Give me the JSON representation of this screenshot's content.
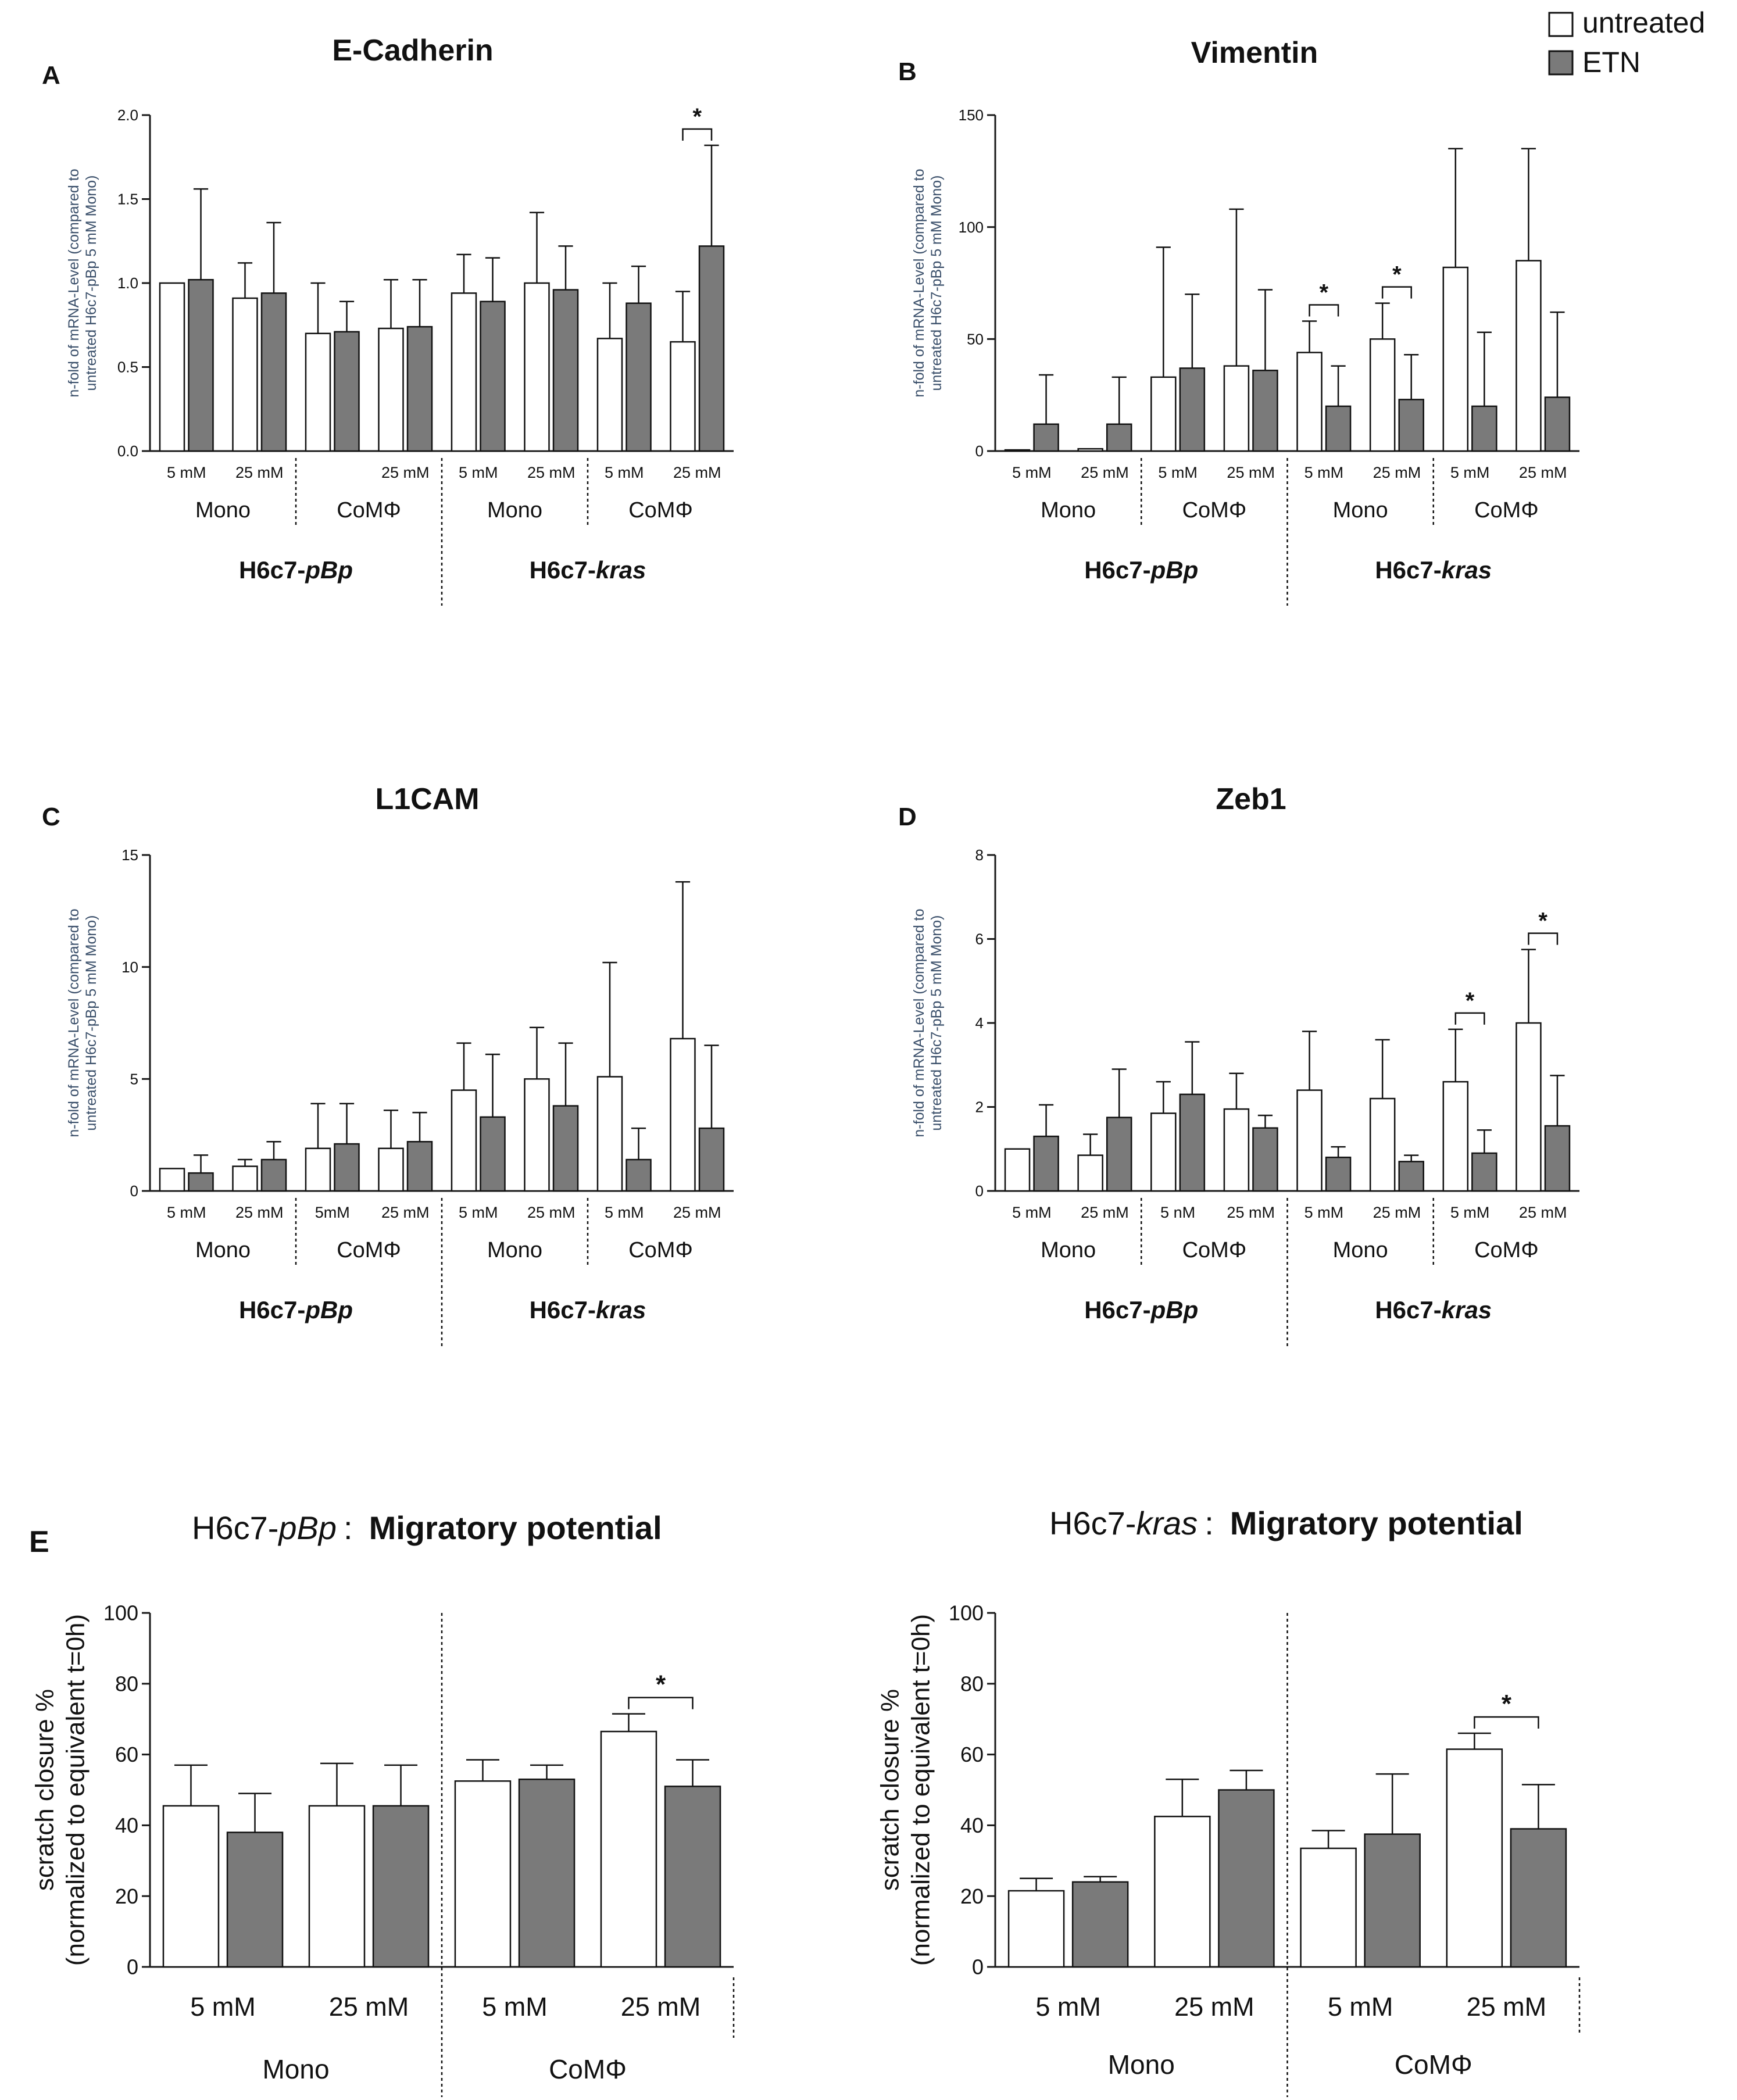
{
  "colors": {
    "untreated": "#ffffff",
    "etn": "#7a7a7a",
    "axis": "#1a1a1a",
    "divider": "#111111",
    "ylabel": "#3a4f6a"
  },
  "legend": {
    "untreated": "untreated",
    "etn": "ETN"
  },
  "chart_data": [
    {
      "id": "A",
      "panel_letter": "A",
      "type": "bar",
      "title": "E-Cadherin",
      "ylabel": [
        "n-fold of mRNA-Level (compared to",
        "untreated H6c7-pBp 5 mM Mono)"
      ],
      "ylim": [
        0,
        2.0
      ],
      "yticks": [
        "0.0",
        "0.5",
        "1.0",
        "1.5",
        "2.0"
      ],
      "categories": [
        "5 mM",
        "25 mM",
        "",
        "25 mM",
        "5 mM",
        "25 mM",
        "5 mM",
        "25 mM"
      ],
      "series": [
        {
          "name": "untreated",
          "values": [
            1.0,
            0.91,
            0.7,
            0.73,
            0.94,
            1.0,
            0.67,
            0.65
          ],
          "errors": [
            0,
            0.21,
            0.3,
            0.29,
            0.23,
            0.42,
            0.33,
            0.3
          ]
        },
        {
          "name": "ETN",
          "values": [
            1.02,
            0.94,
            0.71,
            0.74,
            0.89,
            0.96,
            0.88,
            1.22
          ],
          "errors": [
            0.54,
            0.42,
            0.18,
            0.28,
            0.26,
            0.26,
            0.22,
            0.6
          ]
        }
      ],
      "groups": [
        "Mono",
        "CoMΦ",
        "Mono",
        "CoMΦ"
      ],
      "cell_lines": [
        {
          "prefix": "H6c7-",
          "suffix": "pBp"
        },
        {
          "prefix": "H6c7-",
          "suffix": "kras"
        }
      ],
      "significance": [
        {
          "category": 7,
          "label": "*"
        }
      ]
    },
    {
      "id": "B",
      "panel_letter": "B",
      "type": "bar",
      "title": "Vimentin",
      "ylabel": [
        "n-fold of mRNA-Level (compared to",
        "untreated H6c7-pBp 5 mM Mono)"
      ],
      "ylim": [
        0,
        150
      ],
      "yticks": [
        "0",
        "50",
        "100",
        "150"
      ],
      "categories": [
        "5 mM",
        "25 mM",
        "5 mM",
        "25 mM",
        "5 mM",
        "25 mM",
        "5 mM",
        "25 mM"
      ],
      "series": [
        {
          "name": "untreated",
          "values": [
            0.5,
            1.0,
            33,
            38,
            44,
            50,
            82,
            85
          ],
          "errors": [
            0,
            0,
            58,
            70,
            14,
            16,
            53,
            50
          ]
        },
        {
          "name": "ETN",
          "values": [
            12,
            12,
            37,
            36,
            20,
            23,
            20,
            24
          ],
          "errors": [
            22,
            21,
            33,
            36,
            18,
            20,
            33,
            38
          ]
        }
      ],
      "groups": [
        "Mono",
        "CoMΦ",
        "Mono",
        "CoMΦ"
      ],
      "cell_lines": [
        {
          "prefix": "H6c7-",
          "suffix": "pBp"
        },
        {
          "prefix": "H6c7-",
          "suffix": "kras"
        }
      ],
      "significance": [
        {
          "category": 4,
          "label": "*"
        },
        {
          "category": 5,
          "label": "*"
        }
      ]
    },
    {
      "id": "C",
      "panel_letter": "C",
      "type": "bar",
      "title": "L1CAM",
      "ylabel": [
        "n-fold of mRNA-Level (compared to",
        "untreated H6c7-pBp 5 mM Mono)"
      ],
      "ylim": [
        0,
        15
      ],
      "yticks": [
        "0",
        "5",
        "10",
        "15"
      ],
      "categories": [
        "5 mM",
        "25 mM",
        "5mM",
        "25 mM",
        "5 mM",
        "25 mM",
        "5 mM",
        "25 mM"
      ],
      "series": [
        {
          "name": "untreated",
          "values": [
            1.0,
            1.1,
            1.9,
            1.9,
            4.5,
            5.0,
            5.1,
            6.8
          ],
          "errors": [
            0,
            0.3,
            2.0,
            1.7,
            2.1,
            2.3,
            5.1,
            7.0
          ]
        },
        {
          "name": "ETN",
          "values": [
            0.8,
            1.4,
            2.1,
            2.2,
            3.3,
            3.8,
            1.4,
            2.8
          ],
          "errors": [
            0.8,
            0.8,
            1.8,
            1.3,
            2.8,
            2.8,
            1.4,
            3.7
          ]
        }
      ],
      "groups": [
        "Mono",
        "CoMΦ",
        "Mono",
        "CoMΦ"
      ],
      "cell_lines": [
        {
          "prefix": "H6c7-",
          "suffix": "pBp"
        },
        {
          "prefix": "H6c7-",
          "suffix": "kras"
        }
      ],
      "significance": []
    },
    {
      "id": "D",
      "panel_letter": "D",
      "type": "bar",
      "title": "Zeb1",
      "ylabel": [
        "n-fold of mRNA-Level (compared to",
        "untreated H6c7-pBp 5 mM Mono)"
      ],
      "ylim": [
        0,
        8
      ],
      "yticks": [
        "0",
        "2",
        "4",
        "6",
        "8"
      ],
      "categories": [
        "5 mM",
        "25 mM",
        "5 nM",
        "25 mM",
        "5 mM",
        "25 mM",
        "5 mM",
        "25 mM"
      ],
      "series": [
        {
          "name": "untreated",
          "values": [
            1.0,
            0.85,
            1.85,
            1.95,
            2.4,
            2.2,
            2.6,
            4.0
          ],
          "errors": [
            0,
            0.5,
            0.75,
            0.85,
            1.4,
            1.4,
            1.25,
            1.75
          ]
        },
        {
          "name": "ETN",
          "values": [
            1.3,
            1.75,
            2.3,
            1.5,
            0.8,
            0.7,
            0.9,
            1.55
          ],
          "errors": [
            0.75,
            1.15,
            1.25,
            0.3,
            0.25,
            0.15,
            0.55,
            1.2
          ]
        }
      ],
      "groups": [
        "Mono",
        "CoMΦ",
        "Mono",
        "CoMΦ"
      ],
      "cell_lines": [
        {
          "prefix": "H6c7-",
          "suffix": "pBp"
        },
        {
          "prefix": "H6c7-",
          "suffix": "kras"
        }
      ],
      "significance": [
        {
          "category": 6,
          "label": "*"
        },
        {
          "category": 7,
          "label": "*"
        }
      ]
    },
    {
      "id": "E1",
      "panel_letter": "E",
      "type": "bar",
      "title_prefix": "H6c7-",
      "title_italic": "pBp",
      "title_sep": ":",
      "title_bold": "Migratory potential",
      "ylabel": [
        "scratch closure %",
        "(normalized to equivalent t=0h)"
      ],
      "ylim": [
        0,
        100
      ],
      "yticks": [
        "0",
        "20",
        "40",
        "60",
        "80",
        "100"
      ],
      "categories": [
        "5 mM",
        "25 mM",
        "5 mM",
        "25 mM"
      ],
      "series": [
        {
          "name": "untreated",
          "values": [
            45.5,
            45.5,
            52.5,
            66.5
          ],
          "errors": [
            11.5,
            12,
            6,
            5
          ]
        },
        {
          "name": "ETN",
          "values": [
            38,
            45.5,
            53,
            51
          ],
          "errors": [
            11,
            11.5,
            4,
            7.5
          ]
        }
      ],
      "groups": [
        "Mono",
        "CoMΦ"
      ],
      "significance": [
        {
          "category": 3,
          "label": "*"
        }
      ]
    },
    {
      "id": "E2",
      "type": "bar",
      "title_prefix": "H6c7-",
      "title_italic": "kras",
      "title_sep": ":",
      "title_bold": "Migratory potential",
      "ylabel": [
        "scratch closure %",
        "(normalized to equivalent t=0h)"
      ],
      "ylim": [
        0,
        100
      ],
      "yticks": [
        "0",
        "20",
        "40",
        "60",
        "80",
        "100"
      ],
      "categories": [
        "5 mM",
        "25 mM",
        "5 mM",
        "25 mM"
      ],
      "series": [
        {
          "name": "untreated",
          "values": [
            21.5,
            42.5,
            33.5,
            61.5
          ],
          "errors": [
            3.5,
            10.5,
            5,
            4.5
          ]
        },
        {
          "name": "ETN",
          "values": [
            24,
            50,
            37.5,
            39
          ],
          "errors": [
            1.5,
            5.5,
            17,
            12.5
          ]
        }
      ],
      "groups": [
        "Mono",
        "CoMΦ"
      ],
      "significance": [
        {
          "category": 3,
          "label": "*"
        }
      ]
    }
  ]
}
